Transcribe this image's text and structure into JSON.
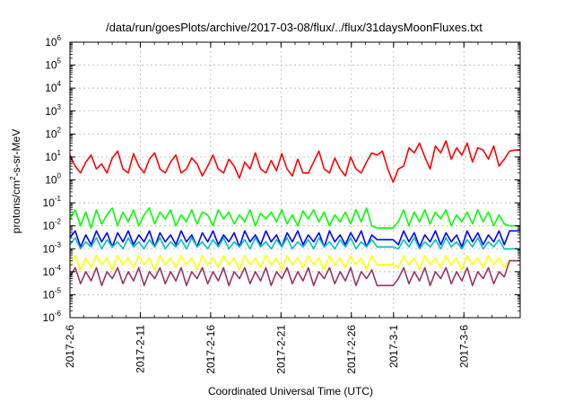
{
  "chart_data": {
    "type": "line",
    "title": "/data/run/goesPlots/archive/2017-03-08/flux/../flux/31daysMoonFluxes.txt",
    "xlabel": "Coordinated Universal Time (UTC)",
    "ylabel": {
      "prefix": "protons/cm",
      "superscript": "2",
      "suffix": "-s-sr-MeV"
    },
    "ylog": true,
    "ylim_exp": [
      -6,
      6
    ],
    "xlim": [
      "2017-02-06",
      "2017-03-10"
    ],
    "x_ticks": [
      "2017-2-6",
      "2017-2-11",
      "2017-2-16",
      "2017-2-21",
      "2017-2-26",
      "2017-3-1",
      "2017-3-6"
    ],
    "x_tick_dates": [
      "2017-02-06",
      "2017-02-11",
      "2017-02-16",
      "2017-02-21",
      "2017-02-26",
      "2017-03-01",
      "2017-03-06"
    ],
    "y_ticks": [
      "10^-6",
      "10^-5",
      "10^-4",
      "10^-3",
      "10^-2",
      "10^-1",
      "10^0",
      "10^1",
      "10^2",
      "10^3",
      "10^4",
      "10^5",
      "10^6"
    ],
    "grid": true,
    "legend": "none",
    "series": [
      {
        "color": "#ff0000",
        "x_start": "2017-02-06",
        "x_end": "2017-03-10",
        "values": [
          12,
          4,
          2,
          6,
          12,
          3,
          5,
          2,
          9,
          18,
          3,
          2,
          14,
          4,
          2,
          8,
          15,
          3,
          2,
          6,
          12,
          2,
          3,
          9,
          5,
          1.5,
          4,
          12,
          3,
          2,
          8,
          4,
          1.2,
          6,
          3,
          15,
          3,
          2,
          7,
          2.5,
          14,
          3,
          1.5,
          8,
          2,
          2,
          6,
          18,
          3,
          2,
          9,
          3,
          1.5,
          10,
          3,
          2,
          6,
          15,
          12,
          18,
          3,
          0.8,
          3,
          4,
          25,
          15,
          40,
          10,
          3,
          30,
          15,
          50,
          8,
          25,
          12,
          40,
          6,
          25,
          20,
          8,
          30,
          4,
          8,
          18,
          20,
          20
        ]
      },
      {
        "color": "#00ff00",
        "x_start": "2017-02-06",
        "x_end": "2017-03-10",
        "values": [
          0.02,
          0.05,
          0.01,
          0.04,
          0.008,
          0.05,
          0.012,
          0.03,
          0.06,
          0.01,
          0.04,
          0.015,
          0.05,
          0.01,
          0.03,
          0.06,
          0.012,
          0.04,
          0.02,
          0.05,
          0.01,
          0.03,
          0.015,
          0.05,
          0.012,
          0.04,
          0.03,
          0.01,
          0.05,
          0.02,
          0.04,
          0.012,
          0.03,
          0.015,
          0.05,
          0.01,
          0.035,
          0.02,
          0.04,
          0.015,
          0.05,
          0.012,
          0.03,
          0.01,
          0.045,
          0.02,
          0.05,
          0.015,
          0.04,
          0.01,
          0.03,
          0.015,
          0.04,
          0.012,
          0.05,
          0.015,
          0.06,
          0.01,
          0.008,
          0.008,
          0.008,
          0.008,
          0.015,
          0.05,
          0.01,
          0.04,
          0.015,
          0.05,
          0.012,
          0.04,
          0.02,
          0.05,
          0.01,
          0.03,
          0.015,
          0.04,
          0.012,
          0.05,
          0.015,
          0.04,
          0.01,
          0.03,
          0.012,
          0.01,
          0.01,
          0.01
        ]
      },
      {
        "color": "#0000ff",
        "x_start": "2017-02-06",
        "x_end": "2017-03-10",
        "values": [
          0.003,
          0.006,
          0.0012,
          0.004,
          0.0015,
          0.006,
          0.002,
          0.005,
          0.0012,
          0.005,
          0.002,
          0.006,
          0.0015,
          0.004,
          0.002,
          0.006,
          0.0012,
          0.005,
          0.002,
          0.004,
          0.0015,
          0.006,
          0.002,
          0.004,
          0.0012,
          0.005,
          0.002,
          0.006,
          0.0015,
          0.004,
          0.002,
          0.005,
          0.0012,
          0.006,
          0.002,
          0.004,
          0.0015,
          0.006,
          0.002,
          0.004,
          0.0012,
          0.005,
          0.002,
          0.006,
          0.0015,
          0.004,
          0.002,
          0.005,
          0.0012,
          0.006,
          0.002,
          0.004,
          0.0015,
          0.005,
          0.002,
          0.006,
          0.0012,
          0.004,
          0.0025,
          0.0025,
          0.0025,
          0.0025,
          0.0015,
          0.006,
          0.002,
          0.005,
          0.0012,
          0.004,
          0.002,
          0.006,
          0.0015,
          0.005,
          0.002,
          0.004,
          0.0012,
          0.006,
          0.002,
          0.005,
          0.0015,
          0.004,
          0.002,
          0.006,
          0.0015,
          0.006,
          0.006,
          0.006
        ]
      },
      {
        "color": "#00c0c0",
        "x_start": "2017-02-06",
        "x_end": "2017-03-10",
        "values": [
          0.0015,
          0.003,
          0.001,
          0.002,
          0.0012,
          0.003,
          0.001,
          0.0025,
          0.0012,
          0.002,
          0.001,
          0.003,
          0.0012,
          0.002,
          0.001,
          0.0025,
          0.0012,
          0.003,
          0.001,
          0.002,
          0.0012,
          0.0025,
          0.001,
          0.003,
          0.0012,
          0.002,
          0.001,
          0.0025,
          0.0012,
          0.003,
          0.001,
          0.002,
          0.0012,
          0.0025,
          0.001,
          0.003,
          0.0012,
          0.002,
          0.001,
          0.0025,
          0.0012,
          0.003,
          0.001,
          0.002,
          0.0012,
          0.0025,
          0.001,
          0.003,
          0.0012,
          0.002,
          0.001,
          0.0025,
          0.0012,
          0.003,
          0.001,
          0.002,
          0.0012,
          0.0025,
          0.0012,
          0.0012,
          0.0012,
          0.0012,
          0.001,
          0.0025,
          0.0012,
          0.003,
          0.001,
          0.002,
          0.0012,
          0.0025,
          0.001,
          0.003,
          0.0012,
          0.002,
          0.001,
          0.0025,
          0.0012,
          0.003,
          0.001,
          0.002,
          0.0012,
          0.0025,
          0.001,
          0.001,
          0.001,
          0.001
        ]
      },
      {
        "color": "#ffff00",
        "x_start": "2017-02-06",
        "x_end": "2017-03-10",
        "values": [
          0.0002,
          0.0005,
          0.00012,
          0.0004,
          0.00015,
          0.0005,
          0.0002,
          0.0004,
          0.00012,
          0.0005,
          0.0002,
          0.0004,
          0.00015,
          0.0005,
          0.0002,
          0.0004,
          0.00012,
          0.0005,
          0.0002,
          0.0004,
          0.00015,
          0.0005,
          0.0002,
          0.0004,
          0.00012,
          0.0005,
          0.0002,
          0.0004,
          0.00015,
          0.0005,
          0.0002,
          0.0004,
          0.00012,
          0.0005,
          0.0002,
          0.0004,
          0.00015,
          0.0005,
          0.0002,
          0.0004,
          0.00012,
          0.0005,
          0.0002,
          0.0004,
          0.00015,
          0.0005,
          0.0002,
          0.0004,
          0.00012,
          0.0005,
          0.0002,
          0.0004,
          0.00015,
          0.0005,
          0.0002,
          0.0004,
          0.00012,
          0.0005,
          0.0002,
          0.0002,
          0.0002,
          0.0002,
          0.00015,
          0.0005,
          0.0002,
          0.0004,
          0.00012,
          0.0005,
          0.0002,
          0.0004,
          0.00015,
          0.0005,
          0.0002,
          0.0004,
          0.00012,
          0.0005,
          0.0002,
          0.0004,
          0.00015,
          0.0005,
          0.0002,
          0.0004,
          0.00015,
          0.0003,
          0.0003,
          0.0003
        ]
      },
      {
        "color": "#993366",
        "x_start": "2017-02-06",
        "x_end": "2017-03-10",
        "values": [
          6e-05,
          0.00015,
          3e-05,
          0.0001,
          4e-05,
          0.00015,
          2.5e-05,
          0.0001,
          5e-05,
          0.00015,
          3e-05,
          0.0001,
          4e-05,
          0.00015,
          2.5e-05,
          0.0001,
          5e-05,
          0.00015,
          3e-05,
          0.0001,
          4e-05,
          0.00015,
          2.5e-05,
          0.0001,
          5e-05,
          0.00015,
          3e-05,
          0.0001,
          4e-05,
          0.00015,
          2.5e-05,
          0.0001,
          5e-05,
          0.00015,
          3e-05,
          0.0001,
          4e-05,
          0.00015,
          2.5e-05,
          0.0001,
          5e-05,
          0.00015,
          3e-05,
          0.0001,
          4e-05,
          0.00015,
          2.5e-05,
          0.0001,
          5e-05,
          0.00015,
          3e-05,
          0.0001,
          4e-05,
          0.00015,
          2.5e-05,
          0.0001,
          5e-05,
          0.00012,
          2.5e-05,
          2.5e-05,
          2.5e-05,
          2.5e-05,
          5e-05,
          0.00015,
          3e-05,
          0.0001,
          4e-05,
          0.00015,
          2.5e-05,
          0.0001,
          5e-05,
          0.00015,
          3e-05,
          0.0001,
          4e-05,
          0.00015,
          2.5e-05,
          0.0001,
          5e-05,
          0.00015,
          3e-05,
          0.0001,
          6e-05,
          0.0003,
          0.0003,
          0.0003
        ]
      }
    ]
  }
}
